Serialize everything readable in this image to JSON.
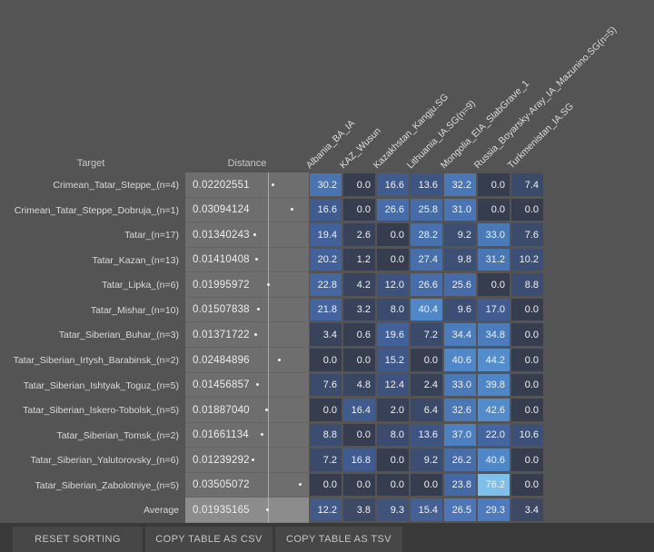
{
  "table": {
    "target_header": "Target",
    "distance_header": "Distance",
    "columns": [
      "Albania_BA_IA",
      "KAZ_Wusun",
      "Kazakhstan_Kangju.SG",
      "Lithuania_IA.SG(n=9)",
      "Mongolia_EIA_SlabGrave_1",
      "Russia_Boyarsky-Aray_IA_Mazunino.SG(n=5)",
      "Turkmenistan_IA.SG"
    ],
    "rows": [
      {
        "target": "Crimean_Tatar_Steppe_(n=4)",
        "distance": "0.02202551",
        "values": [
          "30.2",
          "0.0",
          "16.6",
          "13.6",
          "32.2",
          "0.0",
          "7.4"
        ]
      },
      {
        "target": "Crimean_Tatar_Steppe_Dobruja_(n=1)",
        "distance": "0.03094124",
        "values": [
          "16.6",
          "0.0",
          "26.6",
          "25.8",
          "31.0",
          "0.0",
          "0.0"
        ]
      },
      {
        "target": "Tatar_(n=17)",
        "distance": "0.01340243",
        "values": [
          "19.4",
          "2.6",
          "0.0",
          "28.2",
          "9.2",
          "33.0",
          "7.6"
        ]
      },
      {
        "target": "Tatar_Kazan_(n=13)",
        "distance": "0.01410408",
        "values": [
          "20.2",
          "1.2",
          "0.0",
          "27.4",
          "9.8",
          "31.2",
          "10.2"
        ]
      },
      {
        "target": "Tatar_Lipka_(n=6)",
        "distance": "0.01995972",
        "values": [
          "22.8",
          "4.2",
          "12.0",
          "26.6",
          "25.6",
          "0.0",
          "8.8"
        ]
      },
      {
        "target": "Tatar_Mishar_(n=10)",
        "distance": "0.01507838",
        "values": [
          "21.8",
          "3.2",
          "8.0",
          "40.4",
          "9.6",
          "17.0",
          "0.0"
        ]
      },
      {
        "target": "Tatar_Siberian_Buhar_(n=3)",
        "distance": "0.01371722",
        "values": [
          "3.4",
          "0.6",
          "19.6",
          "7.2",
          "34.4",
          "34.8",
          "0.0"
        ]
      },
      {
        "target": "Tatar_Siberian_Irtysh_Barabinsk_(n=2)",
        "distance": "0.02484896",
        "values": [
          "0.0",
          "0.0",
          "15.2",
          "0.0",
          "40.6",
          "44.2",
          "0.0"
        ]
      },
      {
        "target": "Tatar_Siberian_Ishtyak_Toguz_(n=5)",
        "distance": "0.01456857",
        "values": [
          "7.6",
          "4.8",
          "12.4",
          "2.4",
          "33.0",
          "39.8",
          "0.0"
        ]
      },
      {
        "target": "Tatar_Siberian_Iskero-Tobolsk_(n=5)",
        "distance": "0.01887040",
        "values": [
          "0.0",
          "16.4",
          "2.0",
          "6.4",
          "32.6",
          "42.6",
          "0.0"
        ]
      },
      {
        "target": "Tatar_Siberian_Tomsk_(n=2)",
        "distance": "0.01661134",
        "values": [
          "8.8",
          "0.0",
          "8.0",
          "13.6",
          "37.0",
          "22.0",
          "10.6"
        ]
      },
      {
        "target": "Tatar_Siberian_Yalutorovsky_(n=6)",
        "distance": "0.01239292",
        "values": [
          "7.2",
          "16.8",
          "0.0",
          "9.2",
          "26.2",
          "40.6",
          "0.0"
        ]
      },
      {
        "target": "Tatar_Siberian_Zabolotniye_(n=5)",
        "distance": "0.03505072",
        "values": [
          "0.0",
          "0.0",
          "0.0",
          "0.0",
          "23.8",
          "76.2",
          "0.0"
        ]
      },
      {
        "target": "Average",
        "distance": "0.01935165",
        "values": [
          "12.2",
          "3.8",
          "9.3",
          "15.4",
          "26.5",
          "29.3",
          "3.4"
        ]
      }
    ]
  },
  "buttons": [
    "RESET SORTING",
    "COPY TABLE AS CSV",
    "COPY TABLE AS TSV"
  ],
  "colors": {
    "background": "#545454",
    "footer_background": "#393939",
    "button_background": "#474747",
    "distance_strip": "#6e6e6e",
    "distance_strip_highlight": "#8c8c8c",
    "gridline": "#c8c8c8",
    "dot": "#f0f0f0",
    "heat_scale": [
      [
        0,
        "#363d4f"
      ],
      [
        20,
        "#42619b"
      ],
      [
        40,
        "#4f86c8"
      ],
      [
        80,
        "#83c6ec"
      ]
    ]
  }
}
